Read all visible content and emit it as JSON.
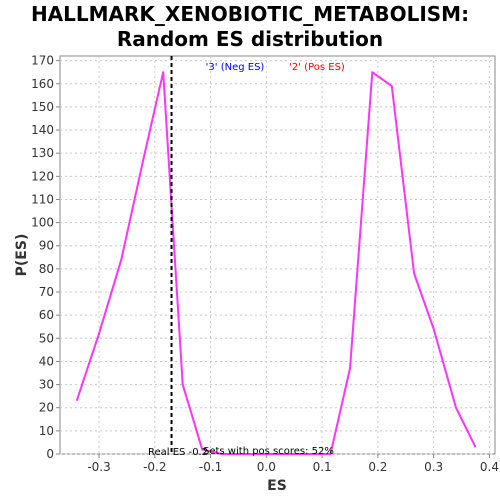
{
  "chart_data": {
    "type": "line",
    "title_line1": "HALLMARK_XENOBIOTIC_METABOLISM:",
    "title_line2": "Random ES distribution",
    "xlabel": "ES",
    "ylabel": "P(ES)",
    "xlim": [
      -0.37,
      0.41
    ],
    "ylim": [
      0,
      172
    ],
    "x_ticks": [
      -0.3,
      -0.2,
      -0.1,
      0.0,
      0.1,
      0.2,
      0.3,
      0.4
    ],
    "x_tick_labels": [
      "-0.3",
      "-0.2",
      "-0.1",
      "0.0",
      "0.1",
      "0.2",
      "0.3",
      "0.4"
    ],
    "y_ticks": [
      0,
      10,
      20,
      30,
      40,
      50,
      60,
      70,
      80,
      90,
      100,
      110,
      120,
      130,
      140,
      150,
      160,
      170
    ],
    "grid": true,
    "series": [
      {
        "color": "#ff33ff",
        "x": [
          -0.34,
          -0.3,
          -0.26,
          -0.22,
          -0.185,
          -0.15,
          -0.115,
          -0.08,
          -0.04,
          0.0,
          0.04,
          0.08,
          0.115,
          0.15,
          0.19,
          0.225,
          0.265,
          0.3,
          0.34,
          0.375
        ],
        "y": [
          23,
          52,
          84,
          128,
          165,
          30,
          2,
          0,
          0,
          0,
          0,
          0,
          0,
          37,
          165,
          159,
          78,
          54,
          20,
          3
        ]
      }
    ],
    "real_es": -0.17,
    "real_es_color": "#000000",
    "annotations": {
      "neg_label": "'3' (Neg ES)",
      "neg_color": "#0000ff",
      "pos_label": "'2' (Pos ES)",
      "pos_color": "#ff0000",
      "real_es_text": "Real ES -0.2",
      "pos_scores_text": "Sets with pos scores: 52%"
    }
  }
}
